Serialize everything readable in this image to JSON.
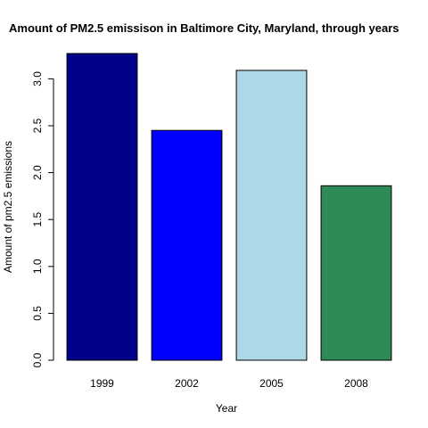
{
  "chart_data": {
    "type": "bar",
    "title": "Amount of PM2.5 emissison in Baltimore City, Maryland, through years",
    "xlabel": "Year",
    "ylabel": "Amount of pm2.5 emissions",
    "categories": [
      "1999",
      "2002",
      "2005",
      "2008"
    ],
    "values": [
      3.27,
      2.45,
      3.09,
      1.86
    ],
    "colors": [
      "#00008B",
      "#0000FF",
      "#ADD8E6",
      "#2E8B57"
    ],
    "yticks": [
      0.0,
      0.5,
      1.0,
      1.5,
      2.0,
      2.5,
      3.0
    ],
    "ytick_labels": [
      "0.0",
      "0.5",
      "1.0",
      "1.5",
      "2.0",
      "2.5",
      "3.0"
    ],
    "ylim": [
      0,
      3.27
    ],
    "grid": false,
    "legend": "none"
  }
}
